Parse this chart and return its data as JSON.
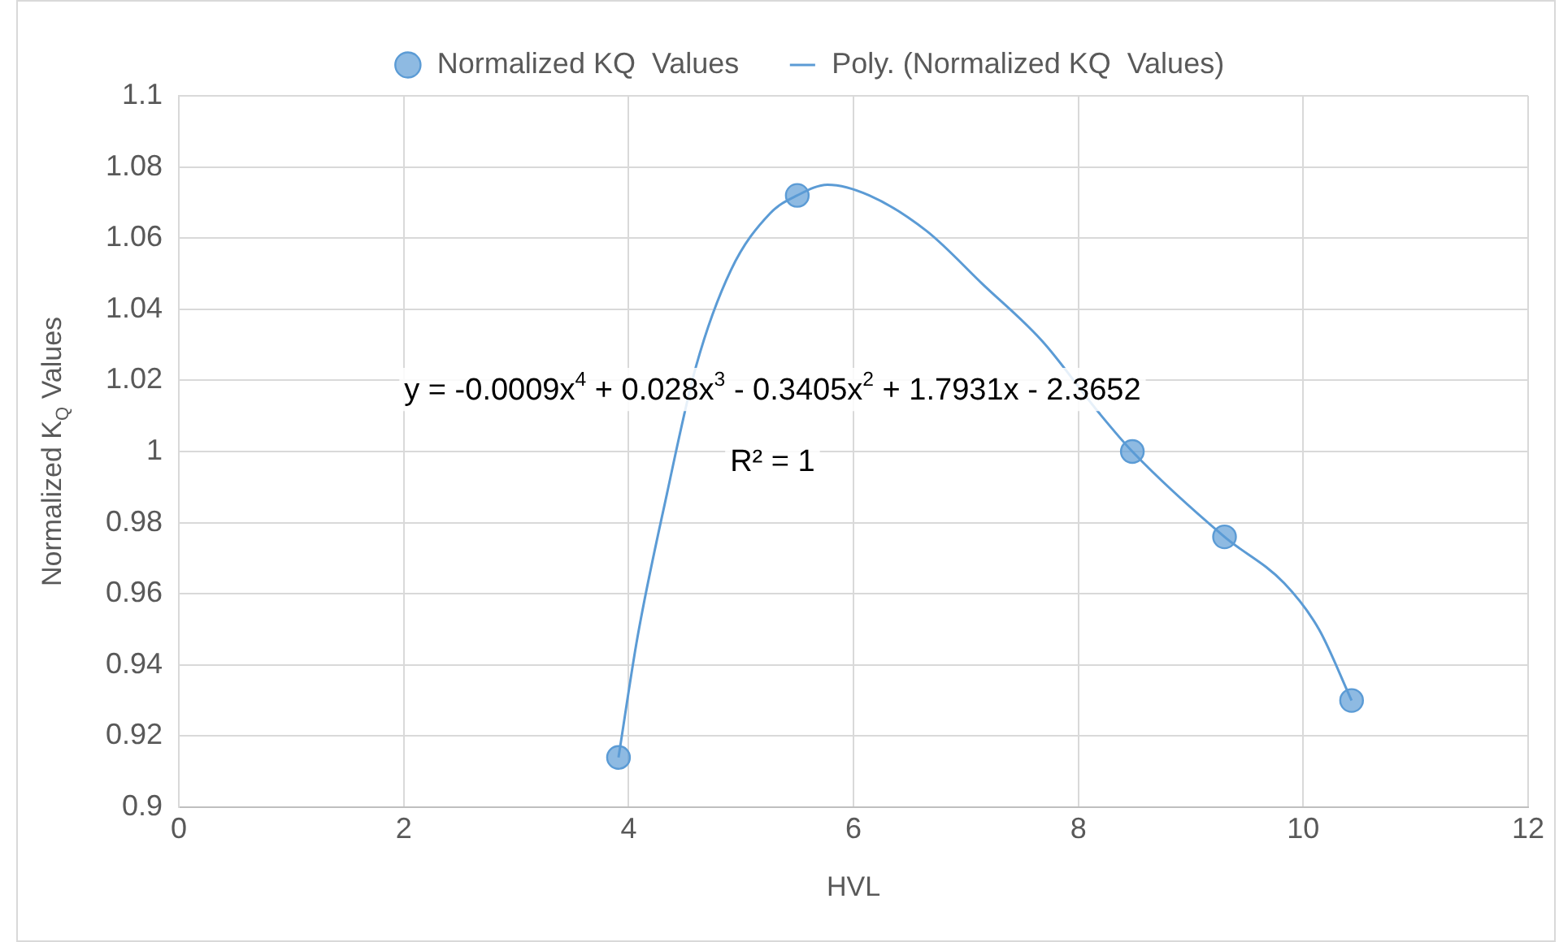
{
  "chart_data": {
    "type": "scatter",
    "xlabel": "HVL",
    "ylabel": "Normalized K$_{Q}$ Values",
    "series": [
      {
        "name": "Normalized KQ  Values",
        "type": "scatter",
        "color": "#5b9bd5",
        "marker": "circle",
        "x": [
          3.91,
          5.5,
          8.48,
          9.3,
          10.43
        ],
        "values": [
          0.914,
          1.072,
          1.0,
          0.976,
          0.93
        ]
      },
      {
        "name": "Poly. (Normalized KQ  Values)",
        "type": "line",
        "color": "#5b9bd5",
        "marker": "none",
        "line_style": "solid",
        "x": [
          3.91,
          4.08,
          4.34,
          4.6,
          4.91,
          5.26,
          5.5,
          5.77,
          6.14,
          6.65,
          7.15,
          7.68,
          8.18,
          8.48,
          9.3,
          9.83,
          10.14,
          10.43
        ],
        "values": [
          0.914,
          0.948,
          0.988,
          1.024,
          1.051,
          1.067,
          1.072,
          1.075,
          1.072,
          1.062,
          1.047,
          1.031,
          1.011,
          1.0,
          0.976,
          0.963,
          0.95,
          0.93
        ]
      }
    ],
    "xlim": [
      0,
      12
    ],
    "xticks": [
      0,
      2,
      4,
      6,
      8,
      10,
      12
    ],
    "ylim": [
      0.9,
      1.1
    ],
    "yticks": [
      0.9,
      0.92,
      0.94,
      0.96,
      0.98,
      1,
      1.02,
      1.04,
      1.06,
      1.08,
      1.1
    ],
    "grid": true,
    "legend": "top",
    "annotations": [
      "y = -0.0009x$^{4}$ + 0.028x$^{3}$ - 0.3405x$^{2}$ + 1.7931x - 2.3652",
      "R² = 1"
    ]
  }
}
